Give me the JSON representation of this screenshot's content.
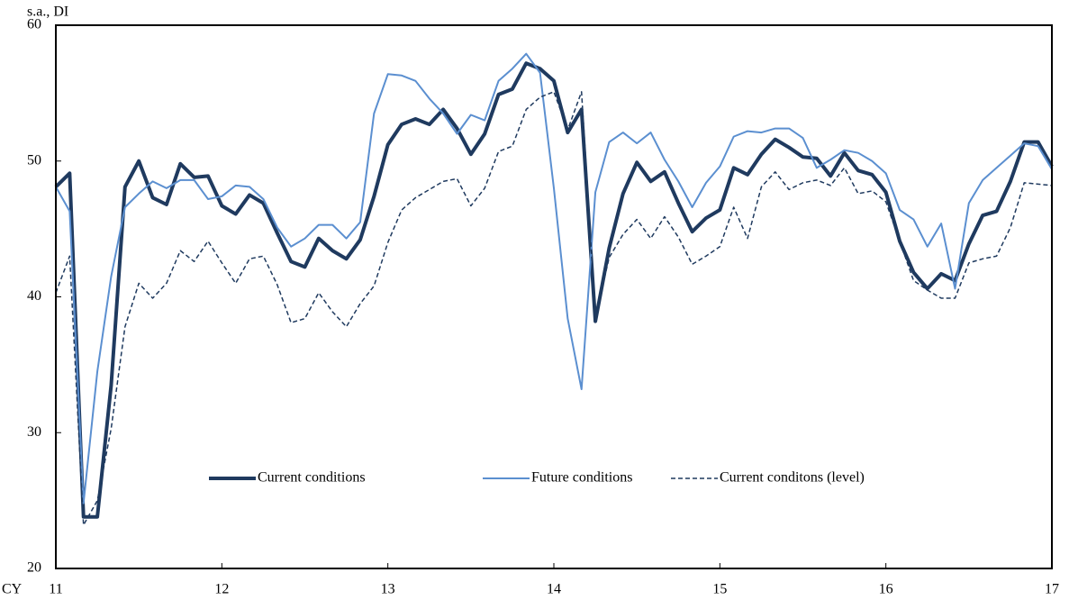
{
  "chart_data": {
    "type": "line",
    "y_unit_label": "s.a., DI",
    "x_axis_prefix": "CY",
    "categories": [
      "11",
      null,
      null,
      null,
      null,
      null,
      null,
      null,
      null,
      null,
      null,
      null,
      "12",
      null,
      null,
      null,
      null,
      null,
      null,
      null,
      null,
      null,
      null,
      null,
      "13",
      null,
      null,
      null,
      null,
      null,
      null,
      null,
      null,
      null,
      null,
      null,
      "14",
      null,
      null,
      null,
      null,
      null,
      null,
      null,
      null,
      null,
      null,
      null,
      "15",
      null,
      null,
      null,
      null,
      null,
      null,
      null,
      null,
      null,
      null,
      null,
      "16",
      null,
      null,
      null,
      null,
      null,
      null,
      null,
      null,
      null,
      null,
      null,
      "17"
    ],
    "series": [
      {
        "name": "Current conditions",
        "color": "#1f3a5f",
        "linewidth": 4,
        "linestyle": "solid",
        "values": [
          48.1,
          49.1,
          23.8,
          23.8,
          33.5,
          48.1,
          50.0,
          47.3,
          46.8,
          49.8,
          48.8,
          48.9,
          46.7,
          46.1,
          47.5,
          46.9,
          44.7,
          42.6,
          42.2,
          44.3,
          43.4,
          42.8,
          44.2,
          47.4,
          51.2,
          52.7,
          53.1,
          52.7,
          53.8,
          52.4,
          50.5,
          52.0,
          54.9,
          55.3,
          57.2,
          56.8,
          55.9,
          52.1,
          53.8,
          38.2,
          43.6,
          47.6,
          49.9,
          48.5,
          49.2,
          46.9,
          44.8,
          45.8,
          46.4,
          49.5,
          49.0,
          50.5,
          51.6,
          51.0,
          50.3,
          50.2,
          48.9,
          50.6,
          49.3,
          49.0,
          47.7,
          44.1,
          41.8,
          40.6,
          41.7,
          41.2,
          43.9,
          46.0,
          46.3,
          48.5,
          51.4,
          51.4,
          49.6
        ]
      },
      {
        "name": "Future conditions",
        "color": "#5b8fd0",
        "linewidth": 2,
        "linestyle": "solid",
        "values": [
          48.1,
          46.3,
          24.8,
          34.5,
          41.5,
          46.6,
          47.6,
          48.5,
          48.0,
          48.6,
          48.6,
          47.2,
          47.4,
          48.2,
          48.1,
          47.2,
          45.1,
          43.7,
          44.3,
          45.3,
          45.3,
          44.3,
          45.5,
          53.5,
          56.4,
          56.3,
          55.9,
          54.6,
          53.5,
          52.0,
          53.4,
          53.0,
          55.9,
          56.8,
          57.9,
          56.5,
          48.0,
          38.4,
          33.2,
          47.7,
          51.4,
          52.1,
          51.3,
          52.1,
          50.1,
          48.5,
          46.6,
          48.4,
          49.6,
          51.8,
          52.2,
          52.1,
          52.4,
          52.4,
          51.7,
          49.5,
          50.1,
          50.8,
          50.6,
          50.0,
          49.1,
          46.4,
          45.7,
          43.7,
          45.4,
          40.6,
          46.9,
          48.6,
          49.5,
          50.4,
          51.3,
          51.1,
          49.4
        ]
      },
      {
        "name": "Current conditons (level)",
        "color": "#1f3a5f",
        "linewidth": 1.5,
        "linestyle": "dashed",
        "values": [
          40.3,
          43.0,
          23.2,
          25.0,
          30.3,
          37.8,
          41.0,
          39.9,
          41.0,
          43.4,
          42.6,
          44.1,
          42.5,
          41.0,
          42.8,
          43.0,
          40.9,
          38.1,
          38.4,
          40.3,
          38.9,
          37.8,
          39.5,
          40.8,
          44.0,
          46.4,
          47.3,
          47.9,
          48.5,
          48.7,
          46.7,
          48.0,
          50.7,
          51.1,
          53.8,
          54.7,
          55.1,
          52.3,
          55.1,
          38.5,
          42.9,
          44.6,
          45.7,
          44.3,
          45.9,
          44.4,
          42.4,
          43.0,
          43.7,
          46.6,
          44.3,
          48.1,
          49.2,
          47.9,
          48.4,
          48.6,
          48.2,
          49.5,
          47.6,
          47.8,
          47.0,
          44.1,
          41.2,
          40.5,
          39.9,
          39.9,
          42.5,
          42.8,
          43.0,
          45.1,
          48.4,
          48.3,
          48.2
        ]
      }
    ],
    "ylim": [
      20,
      60
    ],
    "yticks": [
      20,
      30,
      40,
      50,
      60
    ],
    "grid": false,
    "legend": "lower center"
  }
}
